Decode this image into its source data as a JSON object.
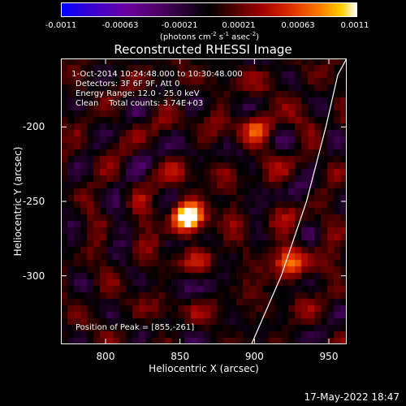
{
  "colorbar": {
    "tick_labels": [
      "-0.0011",
      "-0.00063",
      "-0.00021",
      "0.00021",
      "0.00063",
      "0.0011"
    ],
    "tick_values": [
      -0.0011,
      -0.00063,
      -0.00021,
      0.00021,
      0.00063,
      0.0011
    ],
    "units_prefix": "(photons cm",
    "units_sup1": "-2",
    "units_mid1": " s",
    "units_sup2": "-1",
    "units_mid2": " asec",
    "units_sup3": "-2",
    "units_suffix": ")",
    "colors": [
      "#0000ff",
      "#3a00d0",
      "#6a00a0",
      "#4a0060",
      "#000000",
      "#4a0000",
      "#a00000",
      "#e03000",
      "#ff8000",
      "#ffd000",
      "#ffffff"
    ]
  },
  "chart_data": {
    "type": "heatmap",
    "title": "Reconstructed RHESSI Image",
    "xlabel": "Heliocentric X (arcsec)",
    "ylabel": "Heliocentric Y (arcsec)",
    "xlim": [
      770,
      962
    ],
    "ylim": [
      -346,
      -154
    ],
    "xticks": [
      800,
      850,
      900,
      950
    ],
    "xtick_labels": [
      "800",
      "850",
      "900",
      "950"
    ],
    "yticks": [
      -200,
      -250,
      -300
    ],
    "ytick_labels": [
      "-200",
      "-250",
      "-300"
    ],
    "zlim": [
      -0.0011,
      0.0011
    ],
    "peak": [
      855,
      -261
    ],
    "sources": [
      {
        "x": 855,
        "y": -261,
        "value": 0.0011
      },
      {
        "x": 925,
        "y": -290,
        "value": 0.0007
      },
      {
        "x": 903,
        "y": -201,
        "value": 0.0005
      }
    ],
    "limb": [
      [
        898,
        -346
      ],
      [
        918,
        -300
      ],
      [
        935,
        -250
      ],
      [
        948,
        -200
      ],
      [
        956,
        -165
      ],
      [
        962,
        -154
      ]
    ]
  },
  "annotations": {
    "line1": " 1-Oct-2014 10:24:48.000 to 10:30:48.000",
    "line2": "Detectors: 3F 6F 9F, Att 0",
    "line3": "Energy Range: 12.0 - 25.0 keV",
    "line4": "Clean    Total counts: 3.74E+03",
    "peak_text": "Position of Peak = [855,-261]"
  },
  "footer": {
    "timestamp": "17-May-2022 18:47"
  }
}
